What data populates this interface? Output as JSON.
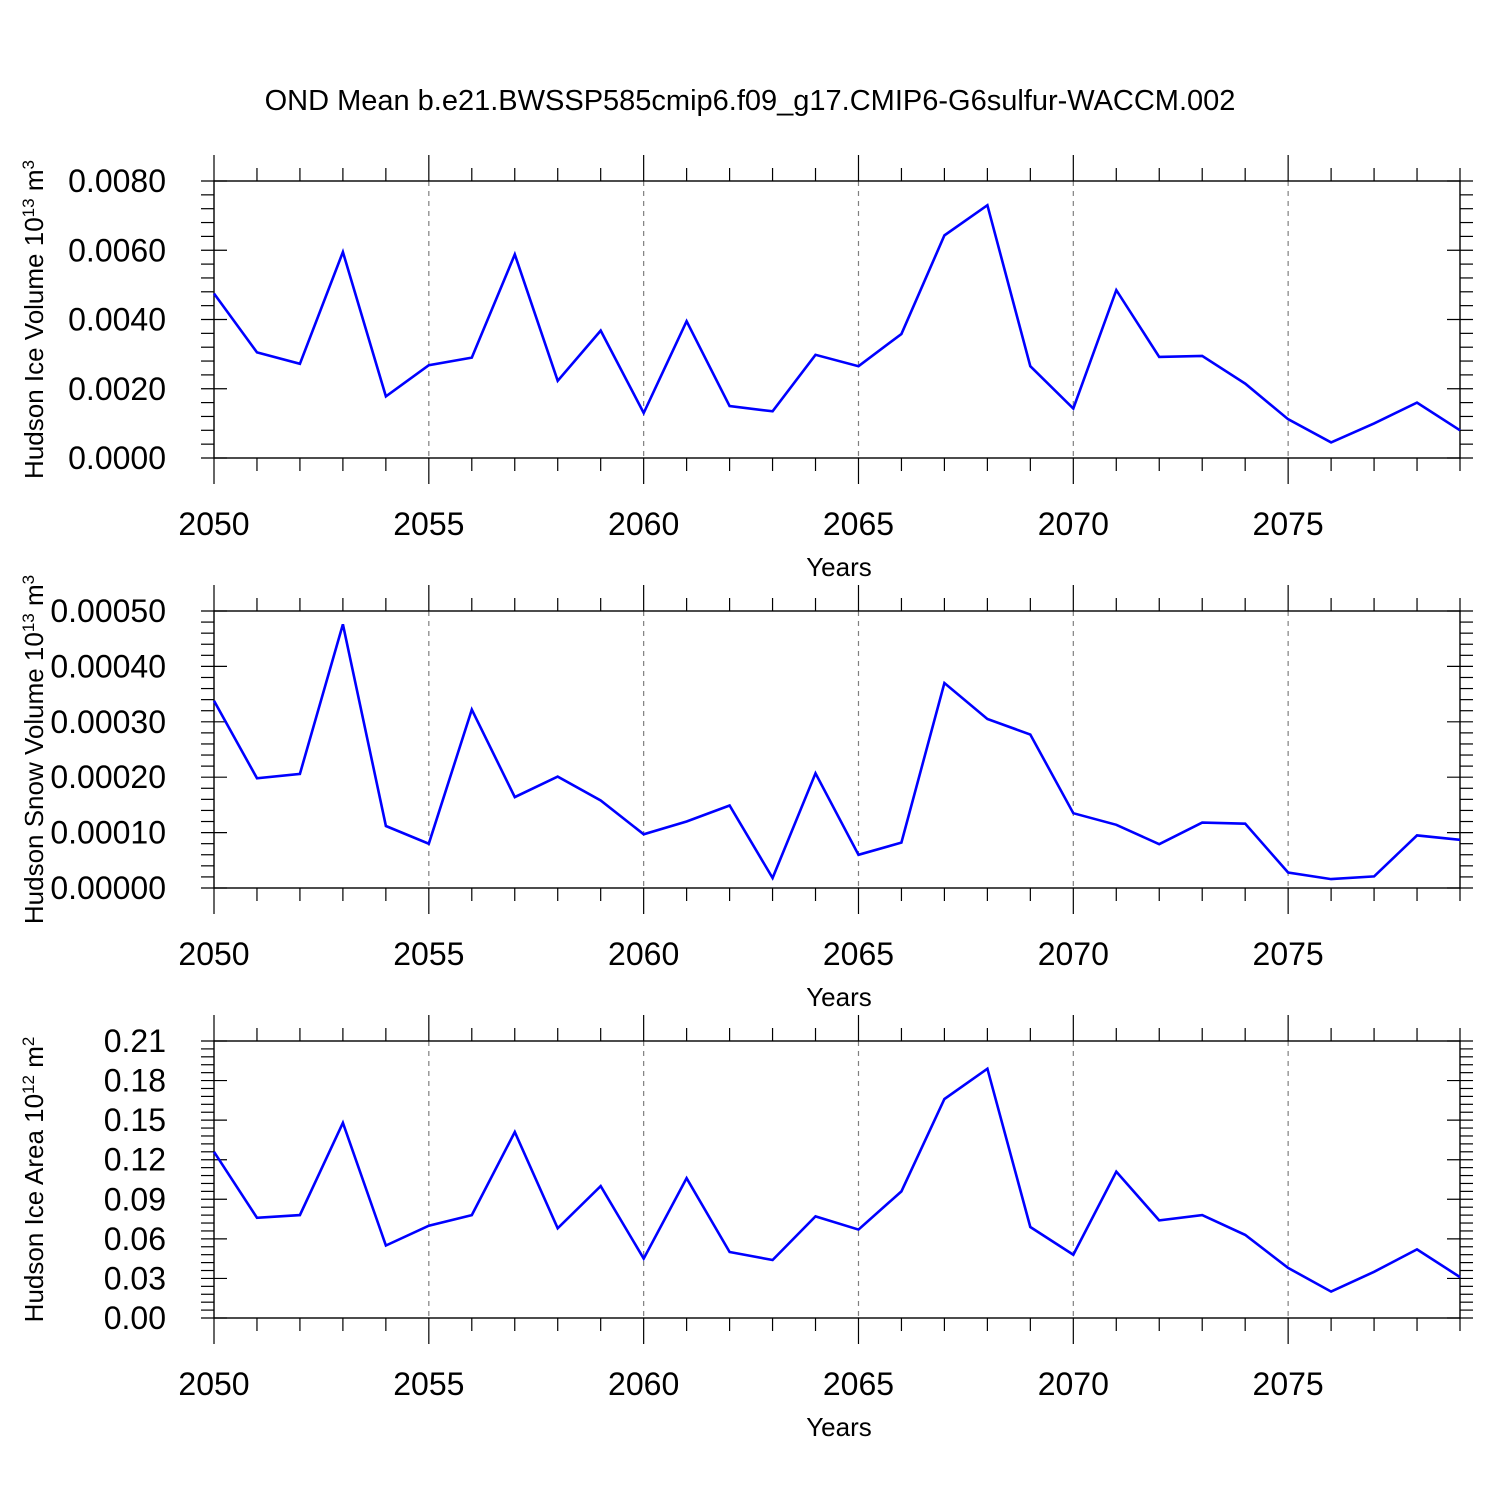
{
  "title": "OND Mean b.e21.BWSSP585cmip6.f09_g17.CMIP6-G6sulfur-WACCM.002",
  "line_color": "#0000ff",
  "grid_color": "#808080",
  "chart_data": [
    {
      "type": "line",
      "name": "ice-volume",
      "ylabel_prefix": "Hudson Ice Volume 10",
      "ylabel_exp": "13",
      "ylabel_unit": " m",
      "ylabel_unit_exp": "3",
      "xlabel": "Years",
      "xlim": [
        2050,
        2079
      ],
      "ylim": [
        0,
        0.008
      ],
      "yticks": [
        0.0,
        0.002,
        0.004,
        0.006,
        0.008
      ],
      "ytick_labels": [
        "0.0000",
        "0.0020",
        "0.0040",
        "0.0060",
        "0.0080"
      ],
      "xticks": [
        2050,
        2055,
        2060,
        2065,
        2070,
        2075
      ],
      "xtick_labels": [
        "2050",
        "2055",
        "2060",
        "2065",
        "2070",
        "2075"
      ],
      "x": [
        2050,
        2051,
        2052,
        2053,
        2054,
        2055,
        2056,
        2057,
        2058,
        2059,
        2060,
        2061,
        2062,
        2063,
        2064,
        2065,
        2066,
        2067,
        2068,
        2069,
        2070,
        2071,
        2072,
        2073,
        2074,
        2075,
        2076,
        2077,
        2078,
        2079
      ],
      "values": [
        0.00475,
        0.00305,
        0.00272,
        0.00595,
        0.00178,
        0.00268,
        0.0029,
        0.00588,
        0.00223,
        0.00368,
        0.0013,
        0.00395,
        0.0015,
        0.00135,
        0.00298,
        0.00265,
        0.00358,
        0.00643,
        0.0073,
        0.00265,
        0.00143,
        0.00485,
        0.00292,
        0.00295,
        0.00215,
        0.00112,
        0.00045,
        0.001,
        0.0016,
        0.0008
      ]
    },
    {
      "type": "line",
      "name": "snow-volume",
      "ylabel_prefix": "Hudson Snow Volume 10",
      "ylabel_exp": "13",
      "ylabel_unit": " m",
      "ylabel_unit_exp": "3",
      "xlabel": "Years",
      "xlim": [
        2050,
        2079
      ],
      "ylim": [
        0,
        0.0005
      ],
      "yticks": [
        0.0,
        0.0001,
        0.0002,
        0.0003,
        0.0004,
        0.0005
      ],
      "ytick_labels": [
        "0.00000",
        "0.00010",
        "0.00020",
        "0.00030",
        "0.00040",
        "0.00050"
      ],
      "xticks": [
        2050,
        2055,
        2060,
        2065,
        2070,
        2075
      ],
      "xtick_labels": [
        "2050",
        "2055",
        "2060",
        "2065",
        "2070",
        "2075"
      ],
      "x": [
        2050,
        2051,
        2052,
        2053,
        2054,
        2055,
        2056,
        2057,
        2058,
        2059,
        2060,
        2061,
        2062,
        2063,
        2064,
        2065,
        2066,
        2067,
        2068,
        2069,
        2070,
        2071,
        2072,
        2073,
        2074,
        2075,
        2076,
        2077,
        2078,
        2079
      ],
      "values": [
        0.000338,
        0.000198,
        0.000206,
        0.000476,
        0.000112,
        8e-05,
        0.000322,
        0.000164,
        0.000201,
        0.000158,
        9.7e-05,
        0.00012,
        0.000149,
        1.8e-05,
        0.000207,
        6e-05,
        8.2e-05,
        0.00037,
        0.000305,
        0.000277,
        0.000135,
        0.000114,
        7.9e-05,
        0.000118,
        0.000116,
        2.8e-05,
        1.6e-05,
        2.1e-05,
        9.5e-05,
        8.7e-05
      ]
    },
    {
      "type": "line",
      "name": "ice-area",
      "ylabel_prefix": "Hudson Ice Area 10",
      "ylabel_exp": "12",
      "ylabel_unit": " m",
      "ylabel_unit_exp": "2",
      "xlabel": "Years",
      "xlim": [
        2050,
        2079
      ],
      "ylim": [
        0,
        0.21
      ],
      "yticks": [
        0.0,
        0.03,
        0.06,
        0.09,
        0.12,
        0.15,
        0.18,
        0.21
      ],
      "ytick_labels": [
        "0.00",
        "0.03",
        "0.06",
        "0.09",
        "0.12",
        "0.15",
        "0.18",
        "0.21"
      ],
      "xticks": [
        2050,
        2055,
        2060,
        2065,
        2070,
        2075
      ],
      "xtick_labels": [
        "2050",
        "2055",
        "2060",
        "2065",
        "2070",
        "2075"
      ],
      "x": [
        2050,
        2051,
        2052,
        2053,
        2054,
        2055,
        2056,
        2057,
        2058,
        2059,
        2060,
        2061,
        2062,
        2063,
        2064,
        2065,
        2066,
        2067,
        2068,
        2069,
        2070,
        2071,
        2072,
        2073,
        2074,
        2075,
        2076,
        2077,
        2078,
        2079
      ],
      "values": [
        0.126,
        0.076,
        0.078,
        0.148,
        0.055,
        0.07,
        0.078,
        0.141,
        0.068,
        0.1,
        0.045,
        0.106,
        0.05,
        0.044,
        0.077,
        0.067,
        0.096,
        0.166,
        0.189,
        0.069,
        0.048,
        0.111,
        0.074,
        0.078,
        0.063,
        0.038,
        0.02,
        0.035,
        0.052,
        0.031
      ]
    }
  ]
}
